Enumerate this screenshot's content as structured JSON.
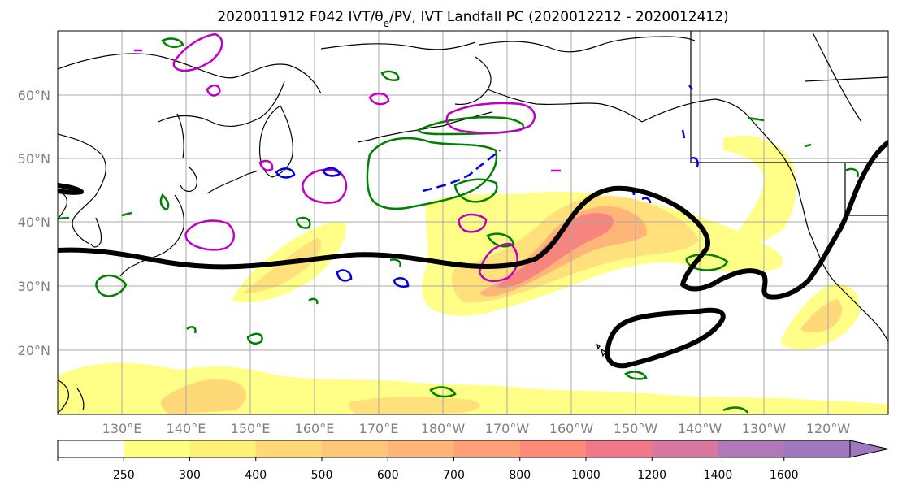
{
  "title": "2020011912 F042 IVT/θe/PV, IVT Landfall PC (2020012212 - 2020012412)",
  "map": {
    "lon_labels": [
      "130°E",
      "140°E",
      "150°E",
      "160°E",
      "170°E",
      "180°W",
      "170°W",
      "160°W",
      "150°W",
      "140°W",
      "130°W",
      "120°W"
    ],
    "lat_labels": [
      "60°N",
      "50°N",
      "40°N",
      "30°N",
      "20°N"
    ],
    "label_color": "#808080",
    "contour_colors": {
      "landfall_pc": "#000000",
      "pv_green": "#008000",
      "pv_magenta": "#c000c0",
      "pv_blue": "#0000e0",
      "coast": "#000000"
    }
  },
  "colorbar": {
    "ticks": [
      "250",
      "300",
      "400",
      "500",
      "600",
      "700",
      "800",
      "1000",
      "1200",
      "1400",
      "1600"
    ],
    "colors": [
      "#ffffff",
      "#ffff80",
      "#fff078",
      "#ffd978",
      "#ffc578",
      "#ffb478",
      "#ffa078",
      "#ff8a78",
      "#f07888",
      "#d878a0",
      "#b078b8",
      "#a078c0"
    ]
  }
}
